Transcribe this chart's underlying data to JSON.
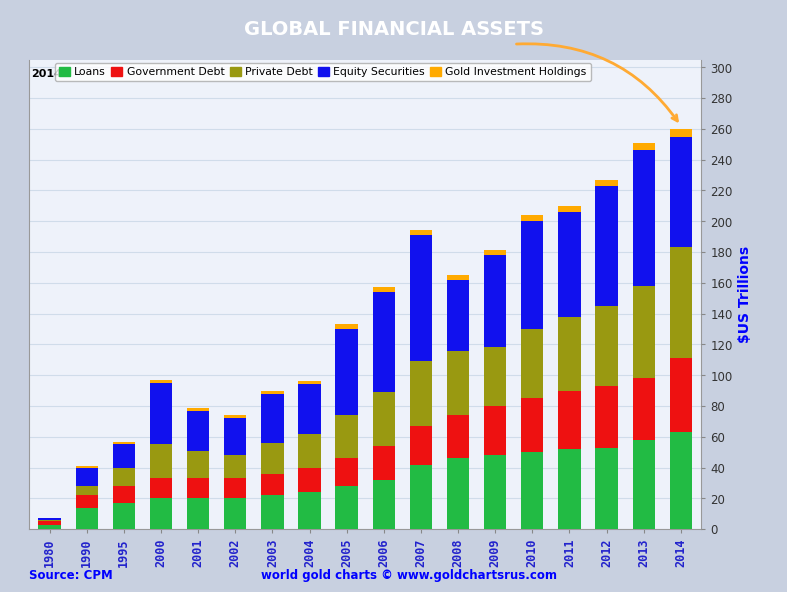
{
  "years": [
    "1980",
    "1990",
    "1995",
    "2000",
    "2001",
    "2002",
    "2003",
    "2004",
    "2005",
    "2006",
    "2007",
    "2008",
    "2009",
    "2010",
    "2011",
    "2012",
    "2013",
    "2014"
  ],
  "loans": [
    3,
    14,
    17,
    20,
    20,
    20,
    22,
    24,
    28,
    32,
    42,
    46,
    48,
    50,
    52,
    53,
    58,
    63
  ],
  "gov_debt": [
    2,
    8,
    11,
    13,
    13,
    13,
    14,
    16,
    18,
    22,
    25,
    28,
    32,
    35,
    38,
    40,
    40,
    48
  ],
  "private_debt": [
    1,
    6,
    12,
    22,
    18,
    15,
    20,
    22,
    28,
    35,
    42,
    42,
    38,
    45,
    48,
    52,
    60,
    72
  ],
  "equity": [
    1,
    12,
    15,
    40,
    26,
    24,
    32,
    32,
    56,
    65,
    82,
    46,
    60,
    70,
    68,
    78,
    88,
    72
  ],
  "gold": [
    0.5,
    1,
    1.5,
    2,
    2,
    2,
    2,
    2,
    3,
    3,
    3,
    3,
    3,
    4,
    4,
    4,
    5,
    5
  ],
  "colors": {
    "loans": "#22BB44",
    "gov_debt": "#EE1111",
    "private_debt": "#999911",
    "equity": "#1111EE",
    "gold": "#FFAA00"
  },
  "title": "GLOBAL FINANCIAL ASSETS",
  "title_bg_color": "#6677BB",
  "outer_bg": "#C8D0E0",
  "plot_bg": "#EEF2FA",
  "border_bg": "#FFFFFF",
  "ylabel": "$US Trillions",
  "ylim": [
    0,
    305
  ],
  "yticks": [
    0,
    20,
    40,
    60,
    80,
    100,
    120,
    140,
    160,
    180,
    200,
    220,
    240,
    260,
    280,
    300
  ],
  "legend_year_label": "2014",
  "source_left": "Source: CPM",
  "source_right": "world gold charts © www.goldchartsrus.com",
  "grid_color": "#D0DCEA",
  "tick_color": "#2222CC",
  "bar_width": 0.6
}
